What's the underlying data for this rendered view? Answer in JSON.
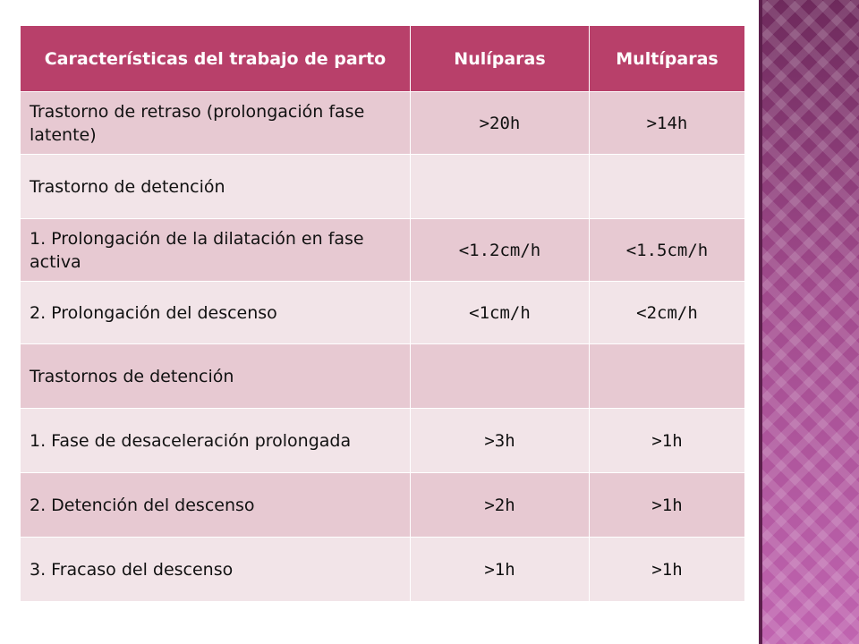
{
  "table": {
    "headers": [
      "Características del trabajo de parto",
      "Nulíparas",
      "Multíparas"
    ],
    "rows": [
      {
        "label": "Trastorno de retraso (prolongación fase latente)",
        "nuliparas": ">20h",
        "multiparas": ">14h"
      },
      {
        "label": "Trastorno de detención",
        "nuliparas": "",
        "multiparas": ""
      },
      {
        "label": "1. Prolongación  de la dilatación en fase activa",
        "nuliparas": "<1.2cm/h",
        "multiparas": "<1.5cm/h"
      },
      {
        "label": "2. Prolongación del descenso",
        "nuliparas": "<1cm/h",
        "multiparas": "<2cm/h"
      },
      {
        "label": "Trastornos de detención",
        "nuliparas": "",
        "multiparas": ""
      },
      {
        "label": "1. Fase de desaceleración prolongada",
        "nuliparas": ">3h",
        "multiparas": ">1h"
      },
      {
        "label": "2. Detención del descenso",
        "nuliparas": ">2h",
        "multiparas": ">1h"
      },
      {
        "label": "3. Fracaso del descenso",
        "nuliparas": ">1h",
        "multiparas": ">1h"
      }
    ]
  },
  "colors": {
    "header": "#b8406a",
    "row_dark": "#e7c9d2",
    "row_light": "#f2e4e8",
    "side_panel": "#8f3f7c"
  }
}
